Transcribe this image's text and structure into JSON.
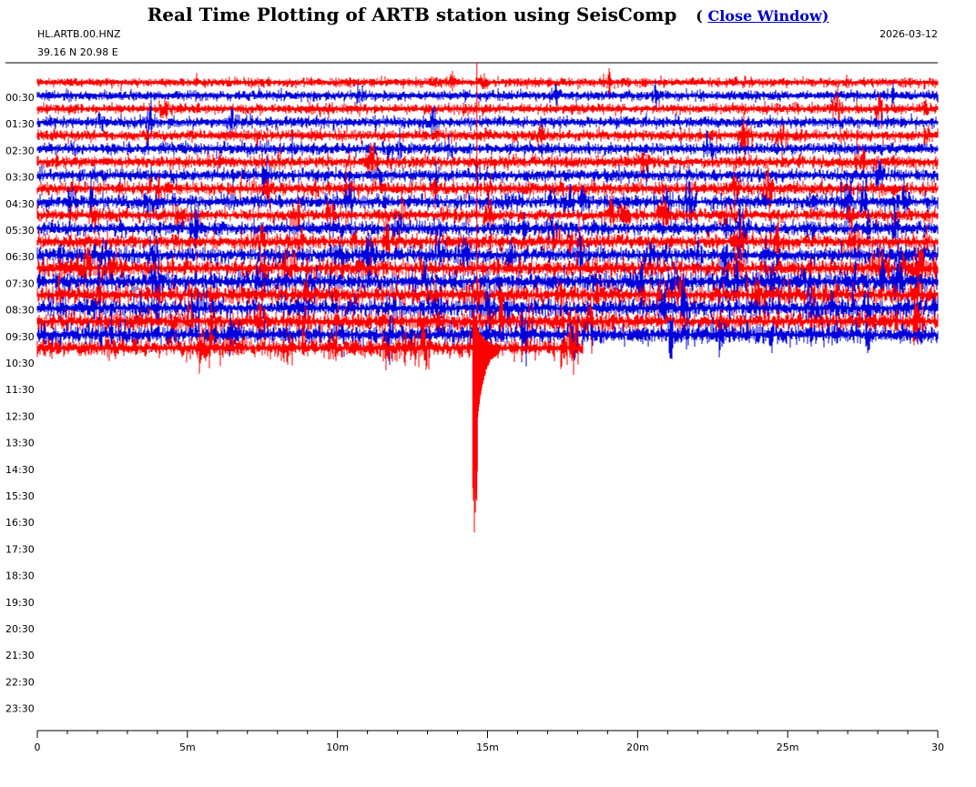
{
  "header": {
    "title": "Real Time Plotting of ARTB station using SeisComp",
    "close_open": "(",
    "close_label": "Close Window)"
  },
  "station": {
    "code": "HL.ARTB.00.HNZ",
    "coords": "39.16 N 20.98 E",
    "date": "2026-03-12"
  },
  "colors": {
    "trace_a": "#ff0000",
    "trace_b": "#0000dd",
    "axis": "#000000"
  },
  "chart_data": {
    "type": "line",
    "title": "",
    "y_tick_labels": [
      "00:30",
      "01:30",
      "02:30",
      "03:30",
      "04:30",
      "05:30",
      "06:30",
      "07:30",
      "08:30",
      "09:30",
      "10:30",
      "11:30",
      "12:30",
      "13:30",
      "14:30",
      "15:30",
      "16:30",
      "17:30",
      "18:30",
      "19:30",
      "20:30",
      "21:30",
      "22:30",
      "23:30"
    ],
    "x_tick_labels": [
      "0",
      "5m",
      "10m",
      "15m",
      "20m",
      "25m",
      "30"
    ],
    "x_range_minutes": [
      0,
      30
    ],
    "rows_per_hour": 2,
    "row_minutes": 30,
    "last_row_end_minute": 18.2,
    "event": {
      "row": 20,
      "minute": 14.6,
      "label": ""
    }
  }
}
